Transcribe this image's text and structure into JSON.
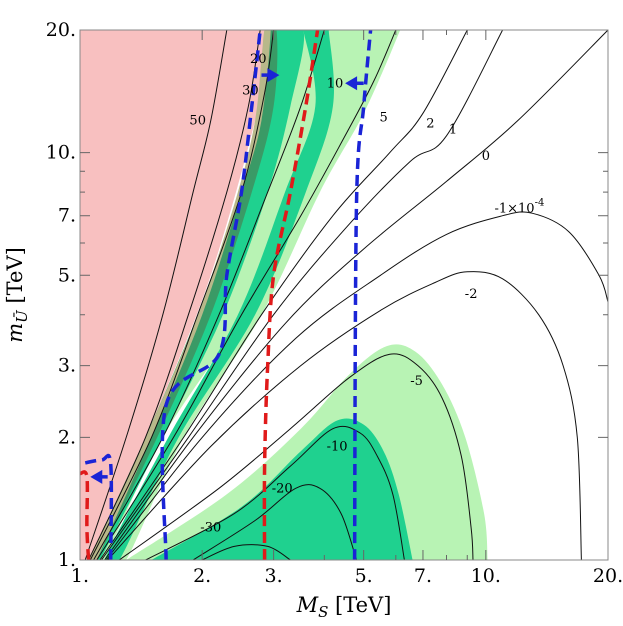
{
  "chart_data": {
    "type": "contour",
    "xlabel_main": "M",
    "xlabel_sub": "S",
    "xlabel_unit": " [TeV]",
    "ylabel_main": "m",
    "ylabel_sub": "Ū",
    "ylabel_unit": " [TeV]",
    "x_scale": "log",
    "y_scale": "log",
    "xlim": [
      1,
      20
    ],
    "ylim": [
      1,
      20
    ],
    "x_ticks": [
      {
        "value": 1,
        "label": "1."
      },
      {
        "value": 2,
        "label": "2."
      },
      {
        "value": 3,
        "label": "3."
      },
      {
        "value": 5,
        "label": "5."
      },
      {
        "value": 7,
        "label": "7."
      },
      {
        "value": 10,
        "label": "10."
      },
      {
        "value": 20,
        "label": "20."
      }
    ],
    "y_ticks": [
      {
        "value": 1,
        "label": "1."
      },
      {
        "value": 2,
        "label": "2."
      },
      {
        "value": 3,
        "label": "3."
      },
      {
        "value": 5,
        "label": "5."
      },
      {
        "value": 7,
        "label": "7."
      },
      {
        "value": 10,
        "label": "10."
      },
      {
        "value": 20,
        "label": "20."
      }
    ],
    "contour_labels": [
      {
        "text": "50",
        "x": 1.95,
        "y": 12.0
      },
      {
        "text": "30",
        "x": 2.63,
        "y": 14.2
      },
      {
        "text": "20",
        "x": 2.75,
        "y": 17.0
      },
      {
        "text": "10",
        "x": 4.25,
        "y": 14.8
      },
      {
        "text": "5",
        "x": 5.6,
        "y": 12.2
      },
      {
        "text": "2",
        "x": 7.3,
        "y": 11.8
      },
      {
        "text": "1",
        "x": 8.3,
        "y": 11.4
      },
      {
        "text": "0",
        "x": 10.0,
        "y": 9.8
      },
      {
        "text": "-1×10",
        "sup": "-4",
        "x": 12.1,
        "y": 7.3
      },
      {
        "text": "-2",
        "x": 9.2,
        "y": 4.5
      },
      {
        "text": "-5",
        "x": 6.75,
        "y": 2.75
      },
      {
        "text": "-10",
        "x": 4.3,
        "y": 1.9
      },
      {
        "text": "-20",
        "x": 3.15,
        "y": 1.5
      },
      {
        "text": "-30",
        "x": 2.1,
        "y": 1.2
      }
    ],
    "contours": [
      {
        "name": "50",
        "points": [
          [
            1.03,
            1.0
          ],
          [
            1.3,
            2.0
          ],
          [
            1.6,
            4.0
          ],
          [
            1.9,
            8.0
          ],
          [
            2.1,
            12.0
          ],
          [
            2.3,
            20.0
          ]
        ]
      },
      {
        "name": "30",
        "points": [
          [
            1.05,
            1.0
          ],
          [
            1.45,
            2.0
          ],
          [
            1.85,
            4.0
          ],
          [
            2.3,
            8.0
          ],
          [
            2.6,
            13.0
          ],
          [
            2.78,
            20.0
          ]
        ]
      },
      {
        "name": "20",
        "points": [
          [
            1.06,
            1.0
          ],
          [
            1.5,
            2.0
          ],
          [
            1.95,
            4.0
          ],
          [
            2.5,
            8.0
          ],
          [
            2.85,
            14.0
          ],
          [
            3.0,
            20.0
          ]
        ]
      },
      {
        "name": "10",
        "points": [
          [
            1.08,
            1.0
          ],
          [
            1.6,
            2.0
          ],
          [
            2.2,
            4.0
          ],
          [
            2.9,
            8.0
          ],
          [
            3.5,
            13.0
          ],
          [
            4.0,
            20.0
          ]
        ]
      },
      {
        "name": "5",
        "points": [
          [
            1.1,
            1.0
          ],
          [
            1.7,
            2.0
          ],
          [
            2.5,
            4.0
          ],
          [
            3.5,
            7.0
          ],
          [
            4.5,
            11.0
          ],
          [
            5.3,
            15.0
          ],
          [
            6.0,
            20.0
          ]
        ]
      },
      {
        "name": "2",
        "points": [
          [
            1.12,
            1.0
          ],
          [
            1.8,
            2.0
          ],
          [
            2.8,
            4.0
          ],
          [
            4.2,
            7.0
          ],
          [
            5.8,
            10.0
          ],
          [
            7.0,
            12.5
          ],
          [
            9.0,
            20.0
          ]
        ]
      },
      {
        "name": "1",
        "points": [
          [
            1.13,
            1.0
          ],
          [
            1.85,
            2.0
          ],
          [
            3.0,
            4.0
          ],
          [
            4.5,
            6.5
          ],
          [
            6.5,
            9.5
          ],
          [
            8.0,
            11.0
          ],
          [
            11.0,
            20.0
          ]
        ]
      },
      {
        "name": "0",
        "points": [
          [
            1.15,
            1.0
          ],
          [
            1.9,
            2.0
          ],
          [
            3.2,
            3.8
          ],
          [
            5.0,
            5.8
          ],
          [
            8.0,
            8.5
          ],
          [
            12.0,
            12.0
          ],
          [
            20.0,
            20.0
          ]
        ]
      },
      {
        "name": "-1e-4",
        "points": [
          [
            1.16,
            1.0
          ],
          [
            2.0,
            2.0
          ],
          [
            3.4,
            3.5
          ],
          [
            5.5,
            5.0
          ],
          [
            8.0,
            6.3
          ],
          [
            11.0,
            7.0
          ],
          [
            13.0,
            7.1
          ],
          [
            16.0,
            6.4
          ],
          [
            19.0,
            5.0
          ],
          [
            20.0,
            4.3
          ]
        ]
      },
      {
        "name": "-2",
        "points": [
          [
            1.17,
            1.0
          ],
          [
            2.1,
            1.9
          ],
          [
            3.5,
            3.0
          ],
          [
            5.5,
            4.1
          ],
          [
            7.5,
            4.8
          ],
          [
            9.0,
            5.1
          ],
          [
            11.0,
            4.9
          ],
          [
            13.5,
            4.0
          ],
          [
            15.5,
            3.0
          ],
          [
            16.8,
            2.0
          ],
          [
            17.2,
            1.0
          ]
        ]
      },
      {
        "name": "-5",
        "points": [
          [
            1.25,
            1.0
          ],
          [
            2.2,
            1.5
          ],
          [
            3.3,
            2.1
          ],
          [
            4.6,
            2.8
          ],
          [
            5.8,
            3.2
          ],
          [
            6.8,
            3.0
          ],
          [
            7.8,
            2.5
          ],
          [
            8.7,
            1.8
          ],
          [
            9.2,
            1.2
          ],
          [
            9.3,
            1.0
          ]
        ]
      },
      {
        "name": "-10",
        "points": [
          [
            1.45,
            1.0
          ],
          [
            2.4,
            1.3
          ],
          [
            3.3,
            1.7
          ],
          [
            4.2,
            2.1
          ],
          [
            4.9,
            2.05
          ],
          [
            5.4,
            1.8
          ],
          [
            5.9,
            1.45
          ],
          [
            6.3,
            1.0
          ]
        ]
      },
      {
        "name": "-20",
        "points": [
          [
            1.9,
            1.0
          ],
          [
            2.7,
            1.25
          ],
          [
            3.4,
            1.5
          ],
          [
            3.9,
            1.5
          ],
          [
            4.4,
            1.3
          ],
          [
            4.8,
            1.0
          ]
        ]
      },
      {
        "name": "-30",
        "points": [
          [
            2.0,
            1.0
          ],
          [
            2.4,
            1.08
          ],
          [
            2.9,
            1.08
          ],
          [
            3.3,
            1.0
          ]
        ]
      }
    ],
    "regions": [
      {
        "name": "pink",
        "color": "#f8c0c0",
        "points": [
          [
            1.0,
            1.0
          ],
          [
            1.0,
            20.0
          ],
          [
            2.95,
            20.0
          ],
          [
            2.7,
            12.0
          ],
          [
            2.1,
            5.0
          ],
          [
            1.6,
            2.5
          ],
          [
            1.2,
            1.3
          ],
          [
            1.05,
            1.0
          ]
        ]
      },
      {
        "name": "light-green-upper",
        "color": "#b8f3b4",
        "points": [
          [
            1.05,
            1.0
          ],
          [
            1.5,
            2.0
          ],
          [
            2.1,
            4.0
          ],
          [
            2.7,
            8.0
          ],
          [
            2.95,
            13.0
          ],
          [
            2.98,
            20.0
          ],
          [
            4.2,
            20.0
          ],
          [
            3.9,
            13.0
          ],
          [
            3.3,
            8.0
          ],
          [
            2.5,
            4.0
          ],
          [
            1.6,
            2.0
          ],
          [
            1.15,
            1.0
          ]
        ]
      },
      {
        "name": "light-green-right",
        "color": "#b8f3b4",
        "points": [
          [
            3.9,
            20.0
          ],
          [
            4.15,
            13.0
          ],
          [
            3.5,
            8.0
          ],
          [
            2.6,
            4.0
          ],
          [
            1.7,
            2.0
          ],
          [
            1.2,
            1.0
          ],
          [
            1.3,
            1.0
          ],
          [
            1.8,
            2.0
          ],
          [
            2.8,
            4.0
          ],
          [
            3.9,
            8.0
          ],
          [
            4.9,
            12.0
          ],
          [
            5.6,
            16.0
          ],
          [
            6.15,
            20.0
          ]
        ]
      },
      {
        "name": "light-green-lower",
        "color": "#b8f3b4",
        "points": [
          [
            1.3,
            1.0
          ],
          [
            2.3,
            1.45
          ],
          [
            3.5,
            2.1
          ],
          [
            4.6,
            2.85
          ],
          [
            5.7,
            3.35
          ],
          [
            6.7,
            3.25
          ],
          [
            7.8,
            2.7
          ],
          [
            8.9,
            2.0
          ],
          [
            9.9,
            1.3
          ],
          [
            10.1,
            1.0
          ]
        ]
      },
      {
        "name": "green-upper",
        "color": "#1fd18f",
        "points": [
          [
            1.05,
            1.0
          ],
          [
            1.45,
            2.0
          ],
          [
            1.95,
            4.0
          ],
          [
            2.5,
            8.0
          ],
          [
            2.85,
            13.0
          ],
          [
            2.9,
            20.0
          ],
          [
            3.55,
            20.0
          ],
          [
            3.3,
            13.0
          ],
          [
            2.9,
            8.0
          ],
          [
            2.25,
            4.0
          ],
          [
            1.6,
            2.0
          ],
          [
            1.12,
            1.0
          ]
        ]
      },
      {
        "name": "green-right",
        "color": "#1fd18f",
        "points": [
          [
            3.55,
            20.0
          ],
          [
            3.8,
            13.0
          ],
          [
            3.2,
            8.0
          ],
          [
            2.45,
            4.0
          ],
          [
            1.65,
            2.0
          ],
          [
            1.15,
            1.0
          ],
          [
            1.25,
            1.0
          ],
          [
            1.75,
            2.0
          ],
          [
            2.7,
            4.0
          ],
          [
            3.6,
            8.0
          ],
          [
            4.2,
            13.0
          ],
          [
            4.1,
            20.0
          ]
        ]
      },
      {
        "name": "green-lower",
        "color": "#1fd18f",
        "points": [
          [
            1.5,
            1.0
          ],
          [
            2.5,
            1.35
          ],
          [
            3.5,
            1.85
          ],
          [
            4.3,
            2.2
          ],
          [
            5.0,
            2.15
          ],
          [
            5.6,
            1.85
          ],
          [
            6.1,
            1.45
          ],
          [
            6.6,
            1.0
          ]
        ]
      },
      {
        "name": "dark-green",
        "color": "#3a9a66",
        "points": [
          [
            1.05,
            1.0
          ],
          [
            1.45,
            2.0
          ],
          [
            1.95,
            4.0
          ],
          [
            2.5,
            8.0
          ],
          [
            2.8,
            13.0
          ],
          [
            2.85,
            20.0
          ],
          [
            3.05,
            20.0
          ],
          [
            3.0,
            13.0
          ],
          [
            2.65,
            8.0
          ],
          [
            2.1,
            4.0
          ],
          [
            1.55,
            2.0
          ],
          [
            1.1,
            1.0
          ]
        ]
      },
      {
        "name": "olive-overlap",
        "color": "#b8b88a",
        "points": [
          [
            1.05,
            1.0
          ],
          [
            1.45,
            2.0
          ],
          [
            1.95,
            4.0
          ],
          [
            2.45,
            8.0
          ],
          [
            2.7,
            12.0
          ],
          [
            2.8,
            17.0
          ],
          [
            2.85,
            20.0
          ],
          [
            2.95,
            20.0
          ],
          [
            2.8,
            12.0
          ],
          [
            2.5,
            8.0
          ],
          [
            2.0,
            4.0
          ],
          [
            1.5,
            2.0
          ],
          [
            1.1,
            1.0
          ]
        ]
      }
    ],
    "dashed_lines": [
      {
        "name": "red-1",
        "color": "#e01a1a",
        "points": [
          [
            1.05,
            1.0
          ],
          [
            1.04,
            1.2
          ],
          [
            1.04,
            1.6
          ],
          [
            1.0,
            1.63
          ]
        ]
      },
      {
        "name": "red-2",
        "color": "#e01a1a",
        "points": [
          [
            2.85,
            1.0
          ],
          [
            2.85,
            1.7
          ],
          [
            2.9,
            3.0
          ],
          [
            3.0,
            5.0
          ],
          [
            3.3,
            8.0
          ],
          [
            3.6,
            13.0
          ],
          [
            3.85,
            20.0
          ]
        ]
      },
      {
        "name": "blue-1",
        "color": "#1a24d6",
        "points": [
          [
            1.19,
            1.0
          ],
          [
            1.19,
            1.72
          ],
          [
            1.13,
            1.76
          ],
          [
            1.0,
            1.72
          ]
        ]
      },
      {
        "name": "blue-2",
        "color": "#1a24d6",
        "points": [
          [
            1.63,
            1.0
          ],
          [
            1.63,
            2.4
          ],
          [
            2.2,
            3.2
          ],
          [
            2.3,
            5.0
          ],
          [
            2.5,
            8.0
          ],
          [
            2.65,
            13.0
          ],
          [
            2.78,
            20.0
          ]
        ]
      },
      {
        "name": "blue-3",
        "color": "#1a24d6",
        "points": [
          [
            4.75,
            1.0
          ],
          [
            4.8,
            7.5
          ],
          [
            5.0,
            13.0
          ],
          [
            5.2,
            20.0
          ]
        ]
      }
    ],
    "arrows": [
      {
        "name": "arrow-left-lower",
        "color": "#1a24d6",
        "from": [
          1.17,
          1.6
        ],
        "to": [
          1.06,
          1.6
        ]
      },
      {
        "name": "arrow-right-upper",
        "color": "#1a24d6",
        "from": [
          2.8,
          15.5
        ],
        "to": [
          3.1,
          15.5
        ]
      },
      {
        "name": "arrow-left-upper",
        "color": "#1a24d6",
        "from": [
          5.0,
          14.8
        ],
        "to": [
          4.5,
          14.8
        ]
      }
    ]
  }
}
